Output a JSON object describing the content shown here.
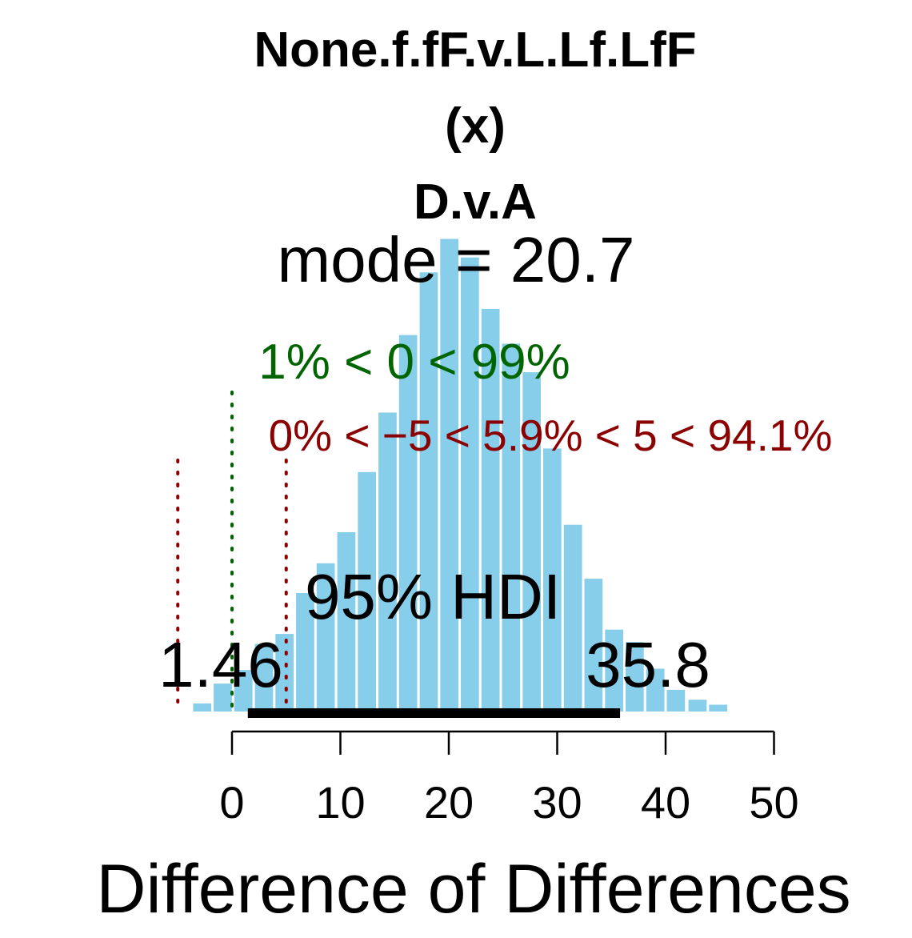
{
  "chart_data": {
    "type": "bar",
    "title_lines": [
      "None.f.fF.v.L.Lf.LfF",
      "(x)",
      "D.v.A"
    ],
    "mode_label": "mode = 20.7",
    "comparison_label": "1% < 0 < 99%",
    "rope_label": "0% < −5 < 5.9% < 5 < 94.1%",
    "hdi_label": "95% HDI",
    "hdi_low_label": "1.46",
    "hdi_high_label": "35.8",
    "hdi": [
      1.46,
      35.8
    ],
    "comp_value": 0,
    "rope": [
      -5,
      5
    ],
    "xlabel": "Difference of Differences",
    "xlim": [
      -5,
      50
    ],
    "xticks": [
      "0",
      "10",
      "20",
      "30",
      "40",
      "50"
    ],
    "bin_width": 1.9,
    "bin_starts": [
      -3.7,
      -1.8,
      0.1,
      2.0,
      3.9,
      5.8,
      7.7,
      9.6,
      11.5,
      13.4,
      15.3,
      17.2,
      19.1,
      21.0,
      22.9,
      24.8,
      26.7,
      28.6,
      30.5,
      32.4,
      34.3,
      36.2,
      38.1,
      40.0,
      42.0,
      43.9
    ],
    "values": [
      0.013,
      0.045,
      0.067,
      0.109,
      0.125,
      0.191,
      0.239,
      0.289,
      0.386,
      0.482,
      0.607,
      0.708,
      0.762,
      0.732,
      0.649,
      0.593,
      0.547,
      0.424,
      0.301,
      0.214,
      0.132,
      0.112,
      0.069,
      0.035,
      0.019,
      0.011
    ],
    "colors": {
      "bars": "#87CEEB",
      "comp": "#006400",
      "rope": "#8B0000",
      "hdi": "#000000",
      "text": "#000000"
    }
  }
}
